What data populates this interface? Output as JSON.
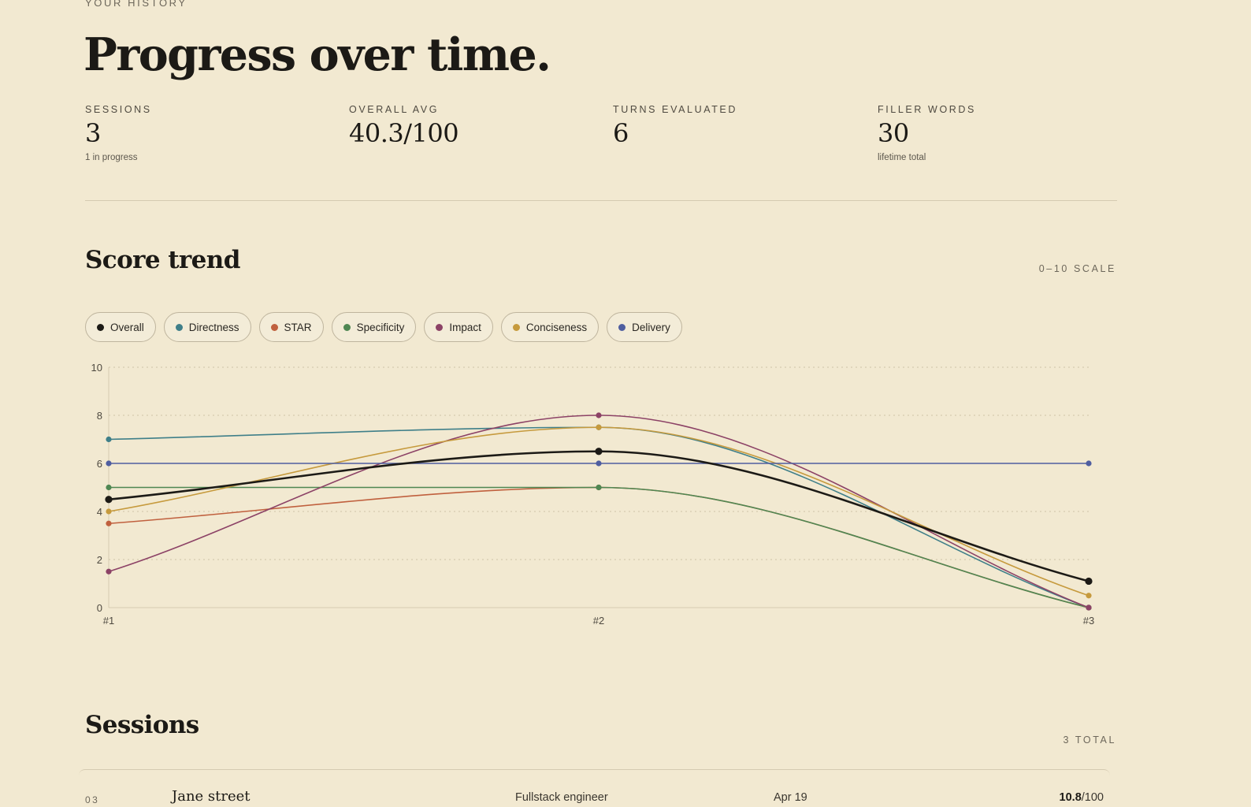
{
  "header": {
    "eyebrow": "YOUR HISTORY",
    "title": "Progress over time."
  },
  "stats": [
    {
      "label": "SESSIONS",
      "value": "3",
      "note": "1 in progress"
    },
    {
      "label": "OVERALL AVG",
      "value": "40.3/100",
      "note": ""
    },
    {
      "label": "TURNS EVALUATED",
      "value": "6",
      "note": ""
    },
    {
      "label": "FILLER WORDS",
      "value": "30",
      "note": "lifetime total"
    }
  ],
  "score_trend": {
    "title": "Score trend",
    "scale_label": "0–10 SCALE"
  },
  "legend": [
    {
      "label": "Overall",
      "color": "#1c1a16"
    },
    {
      "label": "Directness",
      "color": "#3f7f89"
    },
    {
      "label": "STAR",
      "color": "#c0603e"
    },
    {
      "label": "Specificity",
      "color": "#4f8752"
    },
    {
      "label": "Impact",
      "color": "#8c4266"
    },
    {
      "label": "Conciseness",
      "color": "#c69a3d"
    },
    {
      "label": "Delivery",
      "color": "#4f5ea0"
    }
  ],
  "chart_data": {
    "type": "line",
    "categories": [
      "#1",
      "#2",
      "#3"
    ],
    "ylim": [
      0,
      10
    ],
    "yticks": [
      "0",
      "2",
      "4",
      "6",
      "8",
      "10"
    ],
    "grid": true,
    "series": [
      {
        "name": "Directness",
        "color": "#3f7f89",
        "values": [
          7,
          7.5,
          0
        ]
      },
      {
        "name": "STAR",
        "color": "#c0603e",
        "values": [
          3.5,
          5,
          0
        ]
      },
      {
        "name": "Specificity",
        "color": "#4f8752",
        "values": [
          5,
          5,
          0
        ]
      },
      {
        "name": "Impact",
        "color": "#8c4266",
        "values": [
          1.5,
          8,
          0
        ]
      },
      {
        "name": "Conciseness",
        "color": "#c69a3d",
        "values": [
          4,
          7.5,
          0.5
        ]
      },
      {
        "name": "Delivery",
        "color": "#4f5ea0",
        "values": [
          6,
          6,
          6
        ]
      },
      {
        "name": "Overall",
        "color": "#1c1a16",
        "values": [
          4.5,
          6.5,
          1.1
        ]
      }
    ]
  },
  "sessions": {
    "title": "Sessions",
    "total_label": "3 TOTAL",
    "rows": [
      {
        "index": "03",
        "company": "Jane street",
        "role": "Fullstack engineer",
        "date": "Apr 19",
        "score": "10.8",
        "score_suffix": "/100"
      }
    ]
  }
}
